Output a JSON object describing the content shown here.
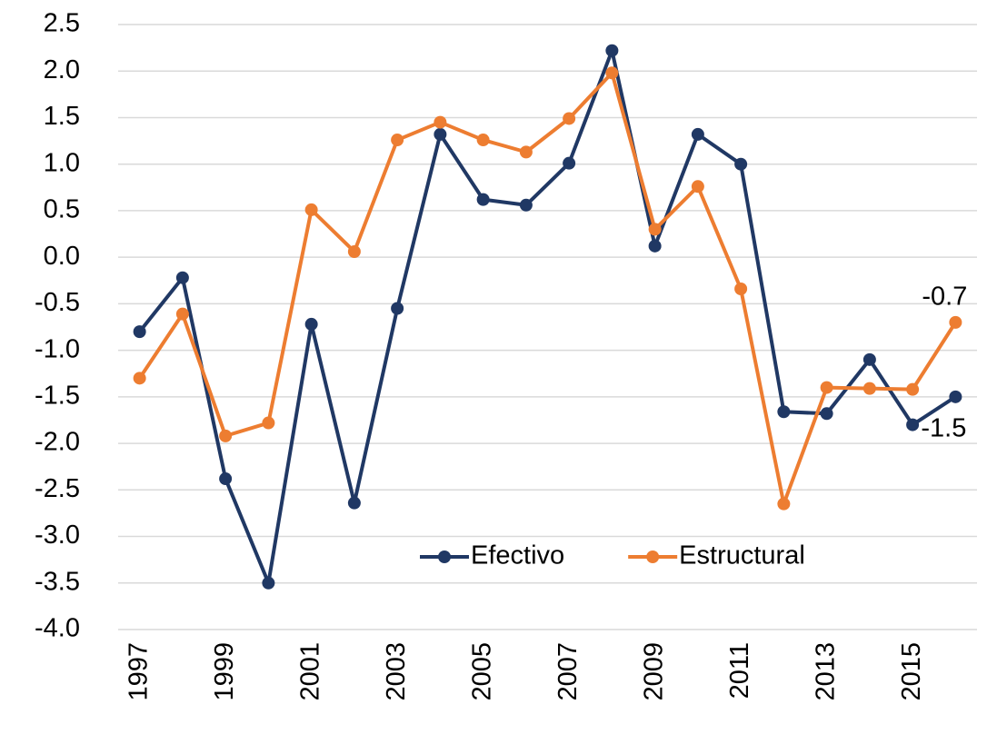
{
  "chart_data": {
    "type": "line",
    "x": [
      1997,
      1998,
      1999,
      2000,
      2001,
      2002,
      2003,
      2004,
      2005,
      2006,
      2007,
      2008,
      2009,
      2010,
      2011,
      2012,
      2013,
      2014,
      2015,
      2016
    ],
    "series": [
      {
        "name": "Efectivo",
        "color": "#203864",
        "values": [
          -0.8,
          -0.22,
          -2.38,
          -3.5,
          -0.72,
          -2.64,
          -0.55,
          1.32,
          0.62,
          0.56,
          1.01,
          2.22,
          0.12,
          1.32,
          1.0,
          -1.66,
          -1.68,
          -1.1,
          -1.8,
          -1.5
        ]
      },
      {
        "name": "Estructural",
        "color": "#ed7d31",
        "values": [
          -1.3,
          -0.61,
          -1.92,
          -1.78,
          0.51,
          0.06,
          1.26,
          1.45,
          1.26,
          1.13,
          1.49,
          1.98,
          0.3,
          0.76,
          -0.34,
          -2.65,
          -1.4,
          -1.41,
          -1.42,
          -0.7
        ]
      }
    ],
    "xlim": [
      1996.5,
      2016.5
    ],
    "xticks": [
      1997,
      1999,
      2001,
      2003,
      2005,
      2007,
      2009,
      2011,
      2013,
      2015
    ],
    "ylim": [
      -4,
      2.5
    ],
    "yticks": [
      {
        "value": -4,
        "label": "-4.0"
      },
      -3.5,
      {
        "value": -3,
        "label": "-3.0"
      },
      -2.5,
      {
        "value": -2,
        "label": "-2.0"
      },
      -1.5,
      {
        "value": -1,
        "label": "-1.0"
      },
      -0.5,
      {
        "value": 0,
        "label": "0.0"
      },
      0.5,
      {
        "value": 1,
        "label": "1.0"
      },
      1.5,
      {
        "value": 2,
        "label": "2.0"
      },
      2.5
    ],
    "grid": true,
    "legend": "bottom"
  }
}
